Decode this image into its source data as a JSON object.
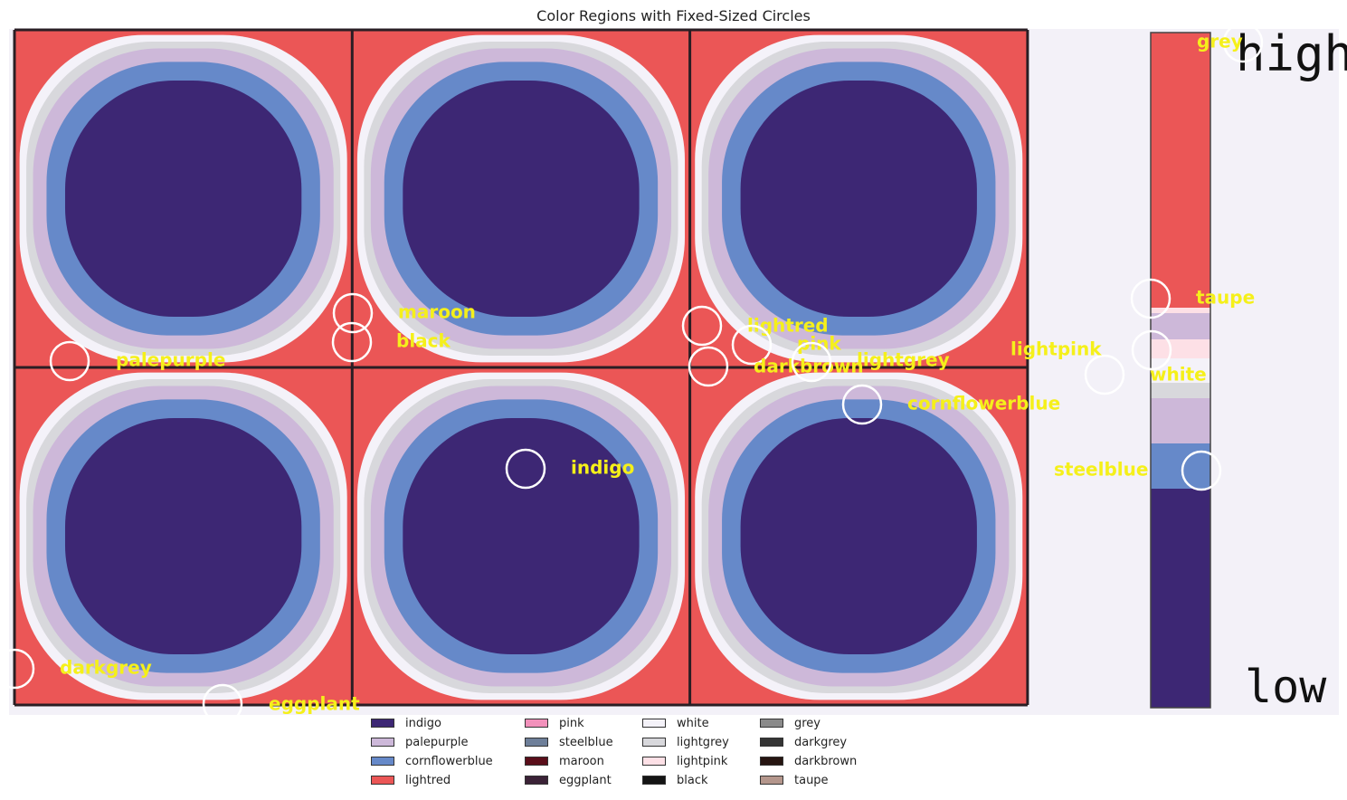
{
  "chart_data": {
    "type": "heatmap",
    "title": "Color Regions with Fixed-Sized Circles",
    "xlabel": "",
    "ylabel": "",
    "grid": false,
    "tiles": {
      "rows": 2,
      "cols": 3
    },
    "colorbar": {
      "top_label": "high",
      "bottom_label": "low"
    },
    "colors": {
      "indigo": "#3d2774",
      "palepurple": "#cdb8d9",
      "cornflowerblue": "#6689c9",
      "lightred": "#eb5656",
      "pink": "#f291bb",
      "steelblue": "#6e7f99",
      "maroon": "#5a0e1a",
      "eggplant": "#3b2237",
      "white": "#f4f2f9",
      "lightgrey": "#d8d8dc",
      "lightpink": "#fde0e6",
      "black": "#141414",
      "grey": "#8a8a8a",
      "darkgrey": "#353535",
      "darkbrown": "#261511",
      "taupe": "#b4968c"
    },
    "legend": {
      "position": "bottom",
      "entries": [
        "indigo",
        "palepurple",
        "cornflowerblue",
        "lightred",
        "pink",
        "steelblue",
        "maroon",
        "eggplant",
        "white",
        "lightgrey",
        "lightpink",
        "black",
        "grey",
        "darkgrey",
        "darkbrown",
        "taupe"
      ]
    },
    "annotations": [
      {
        "label": "maroon"
      },
      {
        "label": "black"
      },
      {
        "label": "palepurple"
      },
      {
        "label": "lightred"
      },
      {
        "label": "pink"
      },
      {
        "label": "darkbrown"
      },
      {
        "label": "lightgrey"
      },
      {
        "label": "lightpink"
      },
      {
        "label": "white"
      },
      {
        "label": "taupe"
      },
      {
        "label": "grey"
      },
      {
        "label": "cornflowerblue"
      },
      {
        "label": "indigo"
      },
      {
        "label": "steelblue"
      },
      {
        "label": "darkgrey"
      },
      {
        "label": "eggplant"
      }
    ]
  }
}
